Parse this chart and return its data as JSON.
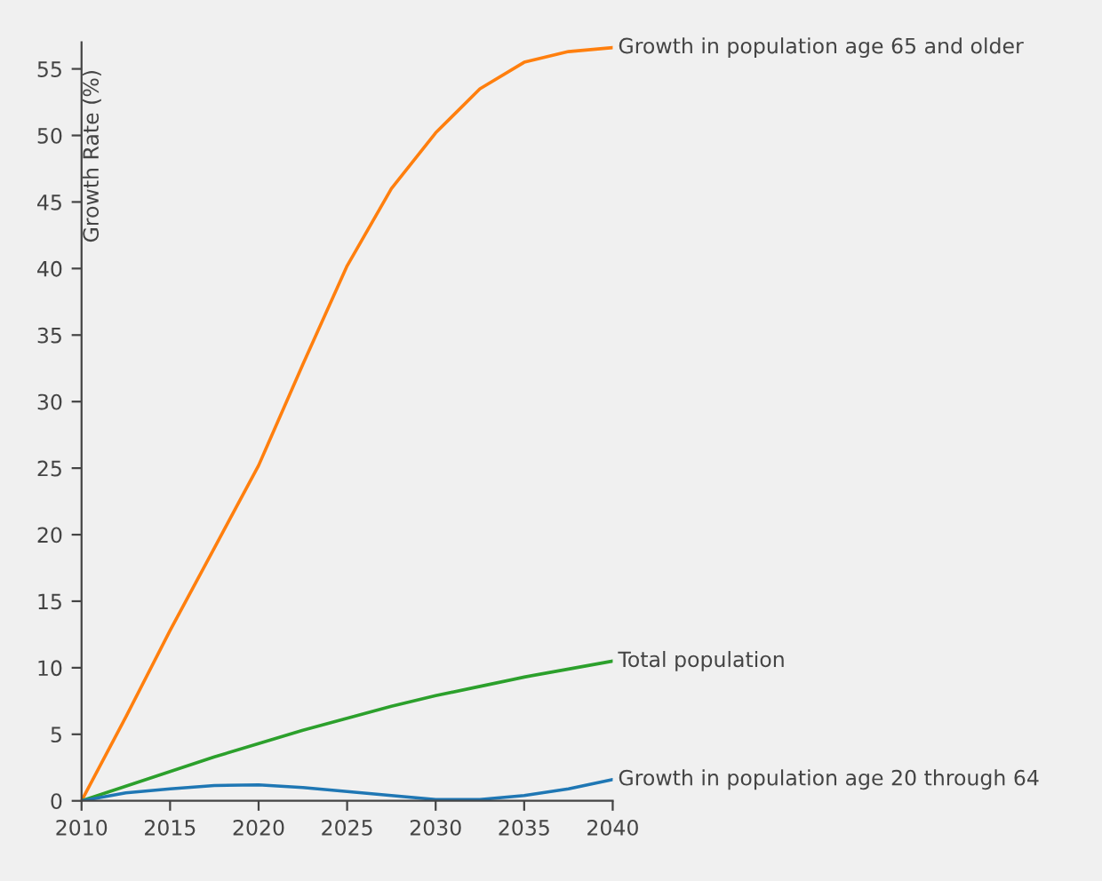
{
  "chart_data": {
    "type": "line",
    "ylabel": "Growth Rate (%)",
    "x": [
      2010,
      2012.5,
      2015,
      2017.5,
      2020,
      2022.5,
      2025,
      2027.5,
      2030,
      2032.5,
      2035,
      2037.5,
      2040
    ],
    "series": [
      {
        "name": "Growth in population age 65 and older",
        "color": "#ff7f0e",
        "values": [
          0,
          6.3,
          12.8,
          19,
          25.2,
          32.8,
          40.2,
          46,
          50.2,
          53.5,
          55.5,
          56.3,
          56.6
        ]
      },
      {
        "name": "Total population",
        "color": "#2ca02c",
        "values": [
          0,
          1.1,
          2.2,
          3.3,
          4.3,
          5.3,
          6.2,
          7.1,
          7.9,
          8.6,
          9.3,
          9.9,
          10.5
        ]
      },
      {
        "name": "Growth in population age 20 through 64",
        "color": "#1f77b4",
        "values": [
          0,
          0.6,
          0.9,
          1.15,
          1.2,
          1.0,
          0.7,
          0.4,
          0.1,
          0.1,
          0.4,
          0.9,
          1.6
        ]
      }
    ],
    "xlim": [
      2010,
      2040
    ],
    "xticks": [
      2010,
      2015,
      2020,
      2025,
      2030,
      2035,
      2040
    ],
    "ylim": [
      0,
      57
    ],
    "yticks": [
      0,
      5,
      10,
      15,
      20,
      25,
      30,
      35,
      40,
      45,
      50,
      55
    ],
    "grid": false,
    "legend": false,
    "marker": "none",
    "line_style": "solid"
  }
}
